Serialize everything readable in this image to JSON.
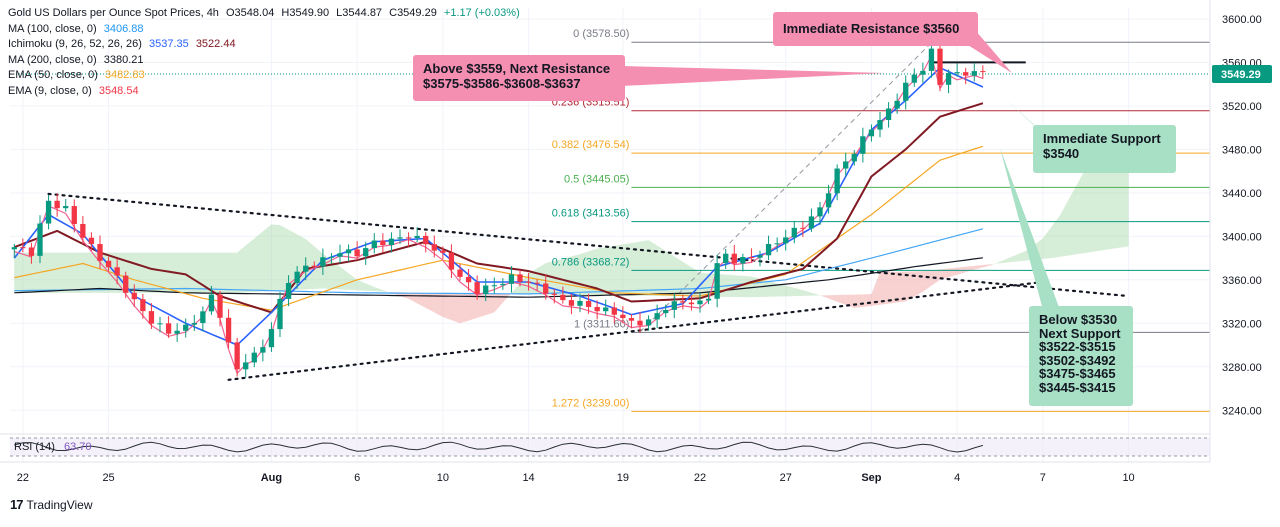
{
  "header": {
    "symbol": "Gold US Dollars per Ounce Spot Prices, 4h",
    "open": "O3548.04",
    "high": "H3549.90",
    "low": "L3544.87",
    "close": "C3549.29",
    "change": "+1.17 (+0.03%)"
  },
  "indicators": [
    {
      "label": "MA (100, close, 0)",
      "values": [
        "3406.88"
      ],
      "colors": [
        "#2196f3"
      ]
    },
    {
      "label": "Ichimoku (9, 26, 52, 26, 26)",
      "values": [
        "3537.35",
        "3522.44"
      ],
      "colors": [
        "#2962ff",
        "#801922"
      ]
    },
    {
      "label": "MA (200, close, 0)",
      "values": [
        "3380.21"
      ],
      "colors": [
        "#131722"
      ]
    },
    {
      "label": "EMA (50, close, 0)",
      "values": [
        "3482.83"
      ],
      "colors": [
        "#f5a623"
      ]
    },
    {
      "label": "EMA (9, close, 0)",
      "values": [
        "3548.54"
      ],
      "colors": [
        "#f23645"
      ]
    }
  ],
  "callouts": {
    "immediate_resistance": "Immediate Resistance $3560",
    "above_line1": "Above $3559, Next Resistance",
    "above_line2": "$3575-$3586-$3608-$3637",
    "immediate_support_line1": "Immediate Support",
    "immediate_support_line2": "$3540",
    "below_lines": [
      "Below $3530",
      "Next Support",
      "$3522-$3515",
      "$3502-$3492",
      "$3475-$3465",
      "$3445-$3415"
    ]
  },
  "rsi": {
    "label": "RSI (14)",
    "value": "63.70"
  },
  "brand": "TradingView",
  "colors": {
    "bull": "#089981",
    "bear": "#f23645",
    "fib_red": "#b22833",
    "fib_orange": "#f5a623",
    "fib_green": "#4caf50",
    "fib_grey": "#787b86",
    "kijun": "#801922",
    "tenkan": "#2962ff",
    "price_tag": "#089981",
    "cloud_green": "#a5d6a7",
    "cloud_red": "#ef9a9a"
  },
  "chart_data": {
    "type": "candlestick",
    "title": "Gold US Dollars per Ounce Spot Prices, 4h",
    "y_axis": {
      "min": 3220,
      "max": 3610,
      "ticks": [
        3240,
        3280,
        3320,
        3360,
        3400,
        3440,
        3480,
        3520,
        3560,
        3600
      ],
      "tick_labels": [
        "3240.00",
        "3280.00",
        "3320.00",
        "3360.00",
        "3400.00",
        "3440.00",
        "3480.00",
        "3520.00",
        "3560.00",
        "3600.00"
      ]
    },
    "x_axis": {
      "tick_labels": [
        "22",
        "25",
        "Aug",
        "6",
        "10",
        "14",
        "19",
        "22",
        "27",
        "Sep",
        "4",
        "7",
        "10"
      ],
      "tick_bars": [
        1,
        11,
        30,
        40,
        50,
        60,
        71,
        80,
        90,
        100,
        110,
        120,
        130
      ]
    },
    "last_price": "3549.29",
    "fib_levels": [
      {
        "label": "0 (3578.50)",
        "value": 3578.5,
        "color": "#787b86"
      },
      {
        "label": "0.236 (3515.51)",
        "value": 3515.51,
        "color": "#b22833"
      },
      {
        "label": "0.382 (3476.54)",
        "value": 3476.54,
        "color": "#f5a623"
      },
      {
        "label": "0.5 (3445.05)",
        "value": 3445.05,
        "color": "#4caf50"
      },
      {
        "label": "0.618 (3413.56)",
        "value": 3413.56,
        "color": "#089981"
      },
      {
        "label": "0.786 (3368.72)",
        "value": 3368.72,
        "color": "#089981"
      },
      {
        "label": "1 (3311.60)",
        "value": 3311.6,
        "color": "#787b86"
      },
      {
        "label": "1.272 (3239.00)",
        "value": 3239.0,
        "color": "#f5a623"
      }
    ],
    "close_path": [
      [
        0,
        3390
      ],
      [
        2,
        3385
      ],
      [
        3,
        3410
      ],
      [
        4,
        3432
      ],
      [
        6,
        3425
      ],
      [
        8,
        3400
      ],
      [
        10,
        3380
      ],
      [
        12,
        3362
      ],
      [
        14,
        3340
      ],
      [
        16,
        3322
      ],
      [
        18,
        3312
      ],
      [
        20,
        3316
      ],
      [
        22,
        3330
      ],
      [
        23,
        3345
      ],
      [
        24,
        3328
      ],
      [
        25,
        3300
      ],
      [
        26,
        3278
      ],
      [
        27,
        3286
      ],
      [
        28,
        3290
      ],
      [
        29,
        3300
      ],
      [
        30,
        3315
      ],
      [
        31,
        3340
      ],
      [
        32,
        3360
      ],
      [
        34,
        3372
      ],
      [
        36,
        3378
      ],
      [
        38,
        3386
      ],
      [
        40,
        3384
      ],
      [
        42,
        3394
      ],
      [
        44,
        3396
      ],
      [
        46,
        3401
      ],
      [
        48,
        3394
      ],
      [
        50,
        3382
      ],
      [
        52,
        3362
      ],
      [
        54,
        3350
      ],
      [
        56,
        3355
      ],
      [
        58,
        3362
      ],
      [
        60,
        3358
      ],
      [
        62,
        3350
      ],
      [
        64,
        3340
      ],
      [
        66,
        3338
      ],
      [
        68,
        3333
      ],
      [
        70,
        3330
      ],
      [
        72,
        3320
      ],
      [
        74,
        3322
      ],
      [
        76,
        3335
      ],
      [
        78,
        3340
      ],
      [
        80,
        3338
      ],
      [
        81,
        3345
      ],
      [
        82,
        3375
      ],
      [
        83,
        3382
      ],
      [
        84,
        3378
      ],
      [
        86,
        3380
      ],
      [
        88,
        3390
      ],
      [
        90,
        3400
      ],
      [
        92,
        3410
      ],
      [
        94,
        3425
      ],
      [
        96,
        3460
      ],
      [
        98,
        3478
      ],
      [
        100,
        3500
      ],
      [
        102,
        3515
      ],
      [
        104,
        3540
      ],
      [
        106,
        3555
      ],
      [
        107,
        3570
      ],
      [
        108,
        3540
      ],
      [
        109,
        3552
      ],
      [
        110,
        3548
      ],
      [
        112,
        3552
      ],
      [
        113,
        3549.29
      ]
    ],
    "ma100": [
      [
        0,
        3350
      ],
      [
        20,
        3352
      ],
      [
        40,
        3348
      ],
      [
        60,
        3347
      ],
      [
        80,
        3352
      ],
      [
        90,
        3360
      ],
      [
        100,
        3380
      ],
      [
        113,
        3406.88
      ]
    ],
    "ma200": [
      [
        0,
        3348
      ],
      [
        10,
        3352
      ],
      [
        20,
        3348
      ],
      [
        40,
        3346
      ],
      [
        60,
        3344
      ],
      [
        80,
        3348
      ],
      [
        95,
        3360
      ],
      [
        105,
        3372
      ],
      [
        113,
        3380.21
      ]
    ],
    "ema50": [
      [
        0,
        3362
      ],
      [
        8,
        3375
      ],
      [
        14,
        3360
      ],
      [
        22,
        3343
      ],
      [
        30,
        3332
      ],
      [
        40,
        3360
      ],
      [
        50,
        3378
      ],
      [
        60,
        3362
      ],
      [
        70,
        3348
      ],
      [
        80,
        3345
      ],
      [
        90,
        3365
      ],
      [
        100,
        3420
      ],
      [
        108,
        3470
      ],
      [
        113,
        3482.83
      ]
    ],
    "tenkan": [
      [
        0,
        3380
      ],
      [
        4,
        3420
      ],
      [
        8,
        3402
      ],
      [
        14,
        3345
      ],
      [
        20,
        3320
      ],
      [
        26,
        3300
      ],
      [
        30,
        3330
      ],
      [
        36,
        3378
      ],
      [
        42,
        3395
      ],
      [
        48,
        3398
      ],
      [
        54,
        3358
      ],
      [
        60,
        3358
      ],
      [
        66,
        3345
      ],
      [
        72,
        3328
      ],
      [
        78,
        3338
      ],
      [
        82,
        3372
      ],
      [
        88,
        3385
      ],
      [
        94,
        3412
      ],
      [
        100,
        3498
      ],
      [
        104,
        3525
      ],
      [
        108,
        3555
      ],
      [
        113,
        3537.35
      ]
    ],
    "kijun": [
      [
        0,
        3390
      ],
      [
        5,
        3405
      ],
      [
        10,
        3385
      ],
      [
        16,
        3370
      ],
      [
        20,
        3365
      ],
      [
        24,
        3345
      ],
      [
        30,
        3330
      ],
      [
        34,
        3370
      ],
      [
        40,
        3378
      ],
      [
        48,
        3395
      ],
      [
        54,
        3375
      ],
      [
        60,
        3368
      ],
      [
        68,
        3352
      ],
      [
        72,
        3340
      ],
      [
        80,
        3343
      ],
      [
        86,
        3358
      ],
      [
        92,
        3370
      ],
      [
        96,
        3398
      ],
      [
        100,
        3455
      ],
      [
        104,
        3480
      ],
      [
        108,
        3510
      ],
      [
        113,
        3522.44
      ]
    ],
    "resistance_line": [
      [
        107,
        3560
      ],
      [
        118,
        3560
      ]
    ],
    "descending_trendline": [
      [
        4,
        3439
      ],
      [
        130,
        3345
      ]
    ],
    "ascending_trendline": [
      [
        25,
        3268
      ],
      [
        120,
        3358
      ]
    ],
    "fib_dashed_line": [
      [
        73,
        3312
      ],
      [
        107,
        3578
      ]
    ],
    "rsi_band": [
      30,
      70
    ]
  }
}
